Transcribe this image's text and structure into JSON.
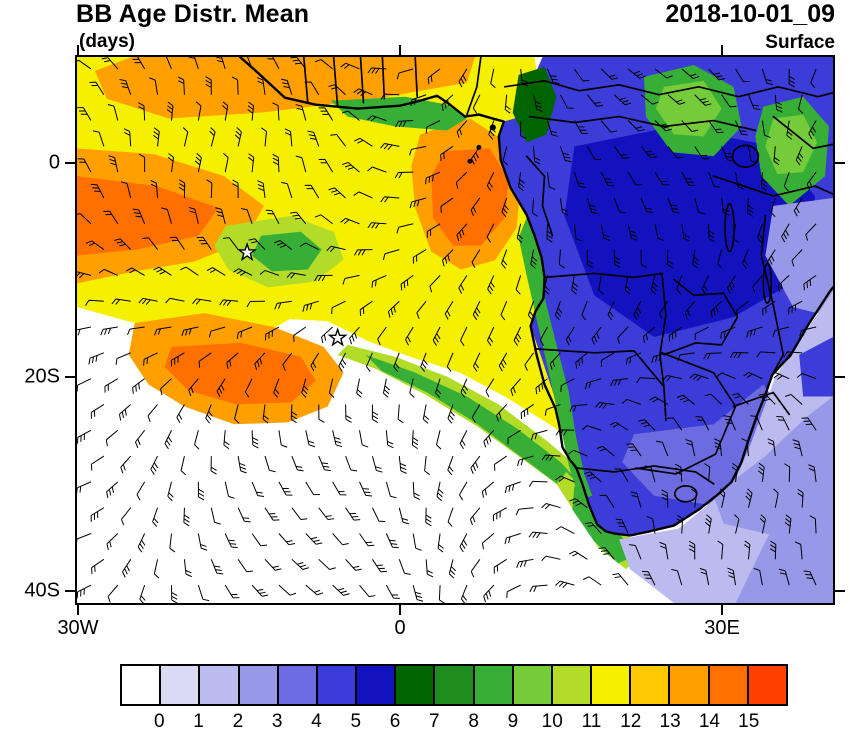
{
  "header": {
    "title": "BB Age Distr. Mean",
    "units_label": "(days)",
    "datetime": "2018-10-01_09",
    "level": "Surface"
  },
  "axes": {
    "y_ticks": [
      "0",
      "20S",
      "40S"
    ],
    "x_ticks": [
      "30W",
      "0",
      "30E"
    ]
  },
  "colorbar": {
    "labels": [
      "0",
      "1",
      "2",
      "3",
      "4",
      "5",
      "6",
      "7",
      "8",
      "9",
      "10",
      "11",
      "12",
      "13",
      "14",
      "15"
    ],
    "colors": [
      "#FFFFFF",
      "#DADAF5",
      "#BBBBEF",
      "#9898E8",
      "#6C6CE0",
      "#3C3CD8",
      "#1212BE",
      "#006400",
      "#1E8C1E",
      "#37AF37",
      "#74CC3A",
      "#B2DC28",
      "#F5F000",
      "#FFC800",
      "#FFA000",
      "#FF7000",
      "#FF4000"
    ]
  },
  "chart_data": {
    "type": "heatmap",
    "title": "BB Age Distr. Mean",
    "units": "days",
    "time": "2018-10-01_09",
    "level": "Surface",
    "projection": "lat-lon map of southern Africa and South Atlantic",
    "lon_range": [
      "30W",
      "40E"
    ],
    "lat_range": [
      "41S",
      "10N"
    ],
    "x_tick_labels": [
      "30W",
      "0",
      "30E"
    ],
    "y_tick_labels": [
      "0",
      "20S",
      "40S"
    ],
    "colorbar_boundary_labels": [
      0,
      1,
      2,
      3,
      4,
      5,
      6,
      7,
      8,
      9,
      10,
      11,
      12,
      13,
      14,
      15
    ],
    "legend_position": "bottom horizontal colorbar",
    "regions": [
      {
        "region": "Eastern tropical Atlantic and Gulf of Guinea west of ~8E, 10N-15S",
        "mean_age_days": "11-13 (yellow)"
      },
      {
        "region": "Plume core offshore Gabon/Congo; band along left edge 0-20S; detached patch near 20S/20W",
        "mean_age_days": "13-15 (orange)"
      },
      {
        "region": "Congo Basin / DRC / Angola / Zambia interior",
        "mean_age_days": "3-6 (blue, deep-blue core over DRC)"
      },
      {
        "region": "East African highlands along right edge",
        "mean_age_days": "7-10 (green patches)"
      },
      {
        "region": "Strip along Angola-Namibia coast, diagonal plume streak toward 25S/10E, SW Cape coast",
        "mean_age_days": "8-11 (green / yellow-green)"
      },
      {
        "region": "SE of South Africa / SW Indian Ocean corner",
        "mean_age_days": "1-3 (lavender-periwinkle)"
      },
      {
        "region": "Remote South Atlantic (SW quadrant) and wedge near 15-25S, 5W-5E",
        "mean_age_days": "0 (white, no aged smoke)"
      }
    ],
    "markers": [
      {
        "symbol": "open star",
        "approx_location": "8S, 14W"
      },
      {
        "symbol": "open star",
        "approx_location": "16S, 6W"
      }
    ],
    "overlays": [
      "surface wind barbs across entire domain",
      "coastlines and country borders in black"
    ]
  }
}
